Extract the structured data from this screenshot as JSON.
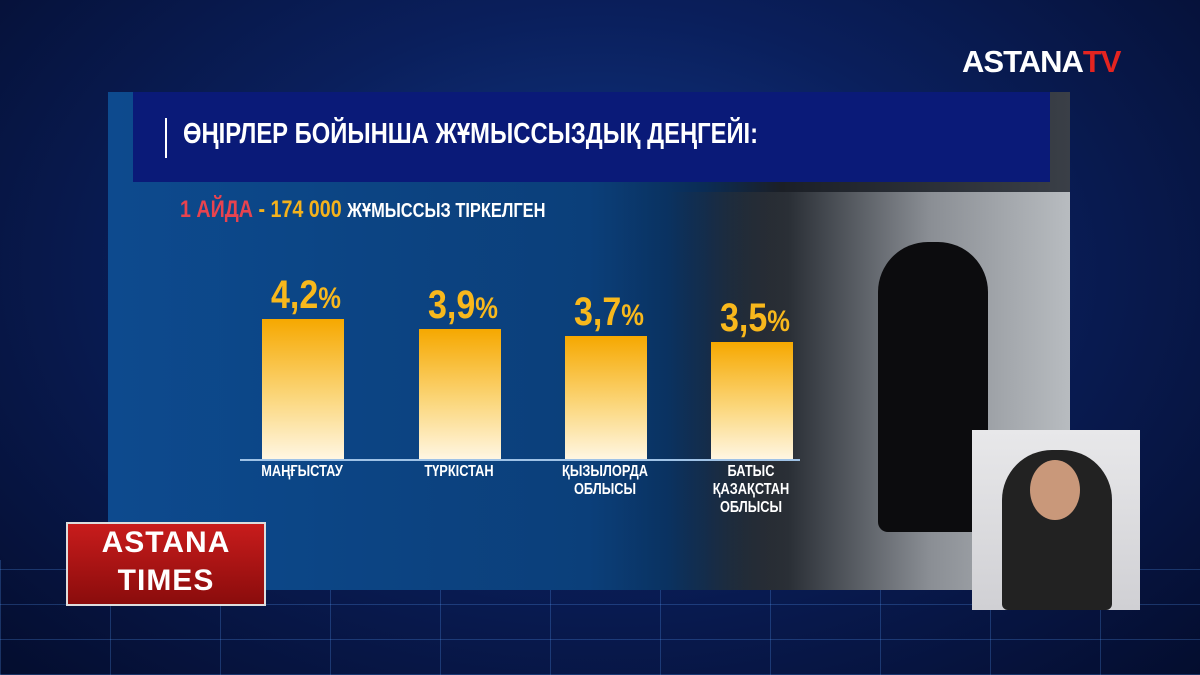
{
  "branding": {
    "channel_logo": "ASTANA",
    "channel_logo_accent": "TV",
    "show_logo_line1": "ASTANA",
    "show_logo_line2": "TIMES"
  },
  "header": {
    "title": "ӨҢІРЛЕР БОЙЫНША ЖҰМЫССЫЗДЫҚ ДЕҢГЕЙІ:"
  },
  "subtitle": {
    "period": "1 АЙДА",
    "dash": "-",
    "count": "174 000",
    "text": "ЖҰМЫССЫЗ ТІРКЕЛГЕН"
  },
  "colors": {
    "bar": "#f6a800",
    "accent_red": "#e8434f",
    "header_bg": "#0a1a78"
  },
  "chart_data": {
    "type": "bar",
    "categories": [
      "МАҢҒЫСТАУ",
      "ТҮРКІСТАН",
      "ҚЫЗЫЛОРДА ОБЛЫСЫ",
      "БАТЫС ҚАЗАҚСТАН ОБЛЫСЫ"
    ],
    "values": [
      4.2,
      3.9,
      3.7,
      3.5
    ],
    "value_labels": [
      "4,2",
      "3,9",
      "3,7",
      "3,5"
    ],
    "unit": "%",
    "grid": false
  }
}
